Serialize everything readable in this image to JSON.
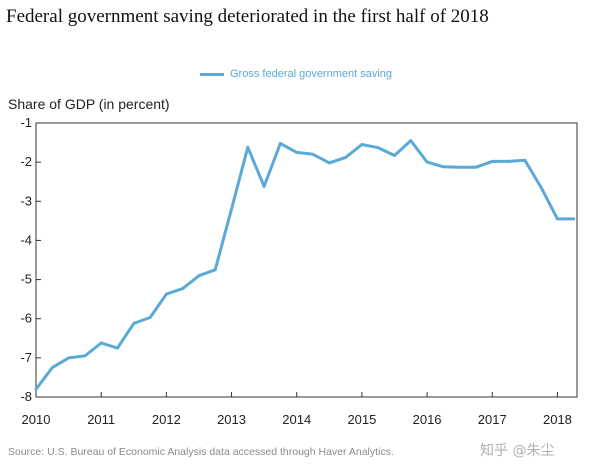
{
  "title": "Federal government saving deteriorated in the first half of 2018",
  "source": "Source: U.S. Bureau of Economic Analysis data accessed through Haver Analytics.",
  "watermark": "知乎 @朱尘",
  "chart_data": {
    "type": "line",
    "ylabel": "Share of GDP (in percent)",
    "xlabel": "",
    "ylim": [
      -8,
      -1
    ],
    "xlim": [
      2010.0,
      2018.3
    ],
    "yticks": [
      -1,
      -2,
      -3,
      -4,
      -5,
      -6,
      -7,
      -8
    ],
    "xticks": [
      "2010",
      "2011",
      "2012",
      "2013",
      "2014",
      "2015",
      "2016",
      "2017",
      "2018"
    ],
    "grid": false,
    "legend_position": "top",
    "colors": {
      "line": "#5aa9d6",
      "frame": "#333333"
    },
    "series": [
      {
        "name": "Gross federal government saving",
        "x": [
          2010.0,
          2010.25,
          2010.5,
          2010.75,
          2011.0,
          2011.25,
          2011.5,
          2011.75,
          2012.0,
          2012.25,
          2012.5,
          2012.75,
          2013.0,
          2013.25,
          2013.5,
          2013.75,
          2014.0,
          2014.25,
          2014.5,
          2014.75,
          2015.0,
          2015.25,
          2015.5,
          2015.75,
          2016.0,
          2016.25,
          2016.5,
          2016.75,
          2017.0,
          2017.25,
          2017.5,
          2017.75,
          2018.0,
          2018.25
        ],
        "y": [
          -7.8,
          -7.25,
          -7.0,
          -6.95,
          -6.62,
          -6.75,
          -6.12,
          -5.97,
          -5.37,
          -5.23,
          -4.9,
          -4.75,
          -3.2,
          -1.62,
          -2.62,
          -1.52,
          -1.75,
          -1.8,
          -2.02,
          -1.88,
          -1.55,
          -1.63,
          -1.83,
          -1.45,
          -2.0,
          -2.12,
          -2.13,
          -2.13,
          -1.98,
          -1.98,
          -1.95,
          -2.65,
          -3.45,
          -3.45
        ]
      }
    ]
  }
}
